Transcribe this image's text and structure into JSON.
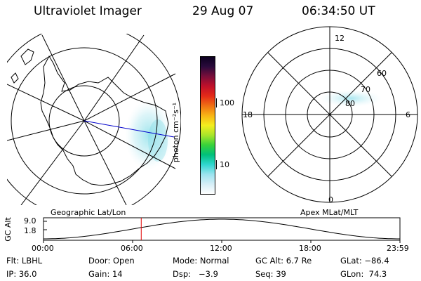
{
  "header": {
    "instrument": "Ultraviolet Imager",
    "date": "29 Aug 07",
    "time": "06:34:50 UT"
  },
  "geo_panel": {
    "label": "Geographic Lat/Lon"
  },
  "apex_panel": {
    "label": "Apex MLat/MLT",
    "mlt_labels": {
      "top": "12",
      "left": "18",
      "right": "6",
      "bottom": "0"
    },
    "lat_labels": [
      "60",
      "70",
      "80"
    ]
  },
  "colorbar": {
    "unit": "photon cm⁻²s⁻¹",
    "ticks": [
      "100",
      "10"
    ],
    "colors": [
      "#ffffff",
      "#d6eef7",
      "#9be3ef",
      "#30d6d0",
      "#00c07a",
      "#38d23a",
      "#a9e62a",
      "#f4ee1e",
      "#f8b515",
      "#f07014",
      "#e42a18",
      "#c0102a",
      "#7a0e3a",
      "#2a0a3c",
      "#0c0020"
    ]
  },
  "altitude_plot": {
    "ylabel": "GC Alt",
    "y_ticks": [
      "9.0",
      "1.8"
    ],
    "x_ticks": [
      "00:00",
      "06:00",
      "12:00",
      "18:00",
      "23:59"
    ],
    "current_time_hours": 6.58
  },
  "status": {
    "filter": "Flt: LBHL",
    "door": "Door: Open",
    "mode": "Mode: Normal",
    "gc_alt": "GC Alt: 6.7 Re",
    "glat": "GLat: −86.4",
    "ip": "IP: 36.0",
    "gain": "Gain: 14",
    "dsp": "Dsp:   −3.9",
    "seq": "Seq: 39",
    "glon": "GLon:  74.3"
  }
}
